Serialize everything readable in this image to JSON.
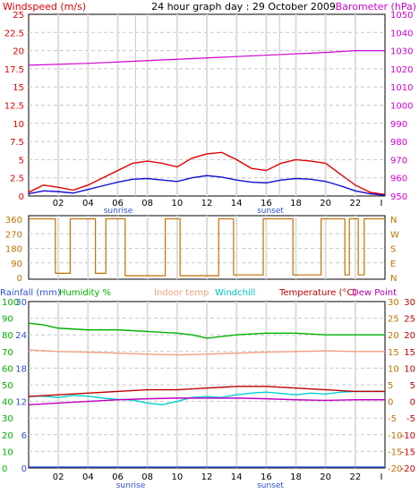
{
  "chart_data": [
    {
      "panel": "wind-barometer",
      "type": "line",
      "title": "24 hour graph day : 29 October 2009",
      "ylabel_left": "Windspeed (m/s)",
      "ylabel_right": "Barometer (hPa)",
      "left_ticks": [
        "25",
        "22.5",
        "20",
        "17.5",
        "15",
        "12.5",
        "10",
        "7.5",
        "5",
        "2.5",
        "0"
      ],
      "right_ticks": [
        "1050",
        "1040",
        "1030",
        "1020",
        "1010",
        "1000",
        "990",
        "980",
        "970",
        "960",
        "950"
      ],
      "ylim_left": [
        0,
        25
      ],
      "ylim_right": [
        950,
        1050
      ],
      "x_ticks": [
        "02",
        "04",
        "06",
        "08",
        "10",
        "12",
        "14",
        "16",
        "18",
        "20",
        "22"
      ],
      "xlim": [
        0,
        24
      ],
      "markers": {
        "sunrise": "sunrise",
        "sunset": "sunset",
        "sunrise_hour": 7.2,
        "sunset_hour": 16.9
      },
      "barometer_x": [
        0,
        4,
        8,
        12,
        16,
        20,
        22,
        24
      ],
      "barometer_y": [
        1022,
        1023,
        1024.5,
        1026,
        1027.5,
        1029,
        1030,
        1030
      ],
      "gust_x": [
        0,
        1,
        2,
        3,
        4,
        5,
        6,
        7,
        8,
        9,
        10,
        11,
        12,
        13,
        14,
        15,
        16,
        17,
        18,
        19,
        20,
        21,
        22,
        23,
        24
      ],
      "gust_y": [
        0.5,
        1.5,
        1.2,
        0.8,
        1.5,
        2.5,
        3.5,
        4.5,
        4.8,
        4.5,
        4.0,
        5.2,
        5.8,
        6.0,
        5.0,
        3.8,
        3.5,
        4.5,
        5.0,
        4.8,
        4.5,
        3.0,
        1.5,
        0.5,
        0.2
      ],
      "avg_x": [
        0,
        1,
        2,
        3,
        4,
        5,
        6,
        7,
        8,
        9,
        10,
        11,
        12,
        13,
        14,
        15,
        16,
        17,
        18,
        19,
        20,
        21,
        22,
        23,
        24
      ],
      "avg_y": [
        0.3,
        0.7,
        0.6,
        0.4,
        0.9,
        1.4,
        1.9,
        2.3,
        2.4,
        2.2,
        2.0,
        2.5,
        2.8,
        2.6,
        2.2,
        1.9,
        1.8,
        2.2,
        2.4,
        2.3,
        2.0,
        1.4,
        0.7,
        0.3,
        0.1
      ],
      "colors": {
        "gust": "#e00000",
        "avg": "#1010d0",
        "barometer": "#d000d0"
      }
    },
    {
      "panel": "wind-direction",
      "type": "line",
      "left_ticks": [
        "360",
        "270",
        "180",
        "90",
        "0"
      ],
      "right_ticks": [
        "N",
        "W",
        "S",
        "E",
        "N"
      ],
      "ylim": [
        0,
        360
      ],
      "xlim": [
        0,
        24
      ],
      "direction_x": [
        0,
        1.8,
        1.8,
        2.8,
        2.8,
        4.5,
        4.5,
        5.2,
        5.2,
        6.5,
        6.5,
        9.2,
        9.2,
        10.2,
        10.2,
        12.8,
        12.8,
        13.8,
        13.8,
        15.8,
        15.8,
        17.8,
        17.8,
        19.7,
        19.7,
        21.3,
        21.3,
        21.6,
        21.6,
        22.2,
        22.2,
        22.6,
        22.6,
        24
      ],
      "direction_y": [
        355,
        355,
        20,
        20,
        355,
        355,
        20,
        20,
        355,
        355,
        5,
        5,
        355,
        355,
        5,
        5,
        355,
        355,
        10,
        10,
        355,
        355,
        10,
        10,
        355,
        355,
        10,
        10,
        355,
        355,
        10,
        10,
        355,
        355
      ],
      "colors": {
        "direction": "#c07000"
      }
    },
    {
      "panel": "temperature-humidity",
      "type": "line",
      "legend": [
        "Rainfall (mm)",
        "Humidity %",
        "Indoor temp",
        "Windchill",
        "Temperature (°C)",
        "Dew Point"
      ],
      "left1_ticks": [
        "30",
        "24",
        "18",
        "12",
        "6",
        "0"
      ],
      "left2_ticks": [
        "100",
        "90",
        "80",
        "70",
        "60",
        "50",
        "40",
        "30",
        "20",
        "10",
        "0"
      ],
      "right1_ticks": [
        "30",
        "25",
        "20",
        "15",
        "10",
        "5",
        "0",
        "-5",
        "-10",
        "-15",
        "-20"
      ],
      "right2_ticks": [
        "30",
        "25",
        "20",
        "15",
        "10",
        "5",
        "0",
        "-5",
        "-10",
        "-15",
        "-20"
      ],
      "ylim_temp": [
        -20,
        30
      ],
      "xlim": [
        0,
        24
      ],
      "x_ticks": [
        "02",
        "04",
        "06",
        "08",
        "10",
        "12",
        "14",
        "16",
        "18",
        "20",
        "22"
      ],
      "markers": {
        "sunrise": "sunrise",
        "sunset": "sunset"
      },
      "humidity_x": [
        0,
        1,
        2,
        4,
        6,
        8,
        10,
        11,
        12,
        14,
        16,
        18,
        20,
        22,
        24
      ],
      "humidity_y": [
        87,
        86,
        84,
        83,
        83,
        82,
        81,
        80,
        78,
        80,
        81,
        81,
        80,
        80,
        80
      ],
      "indoor_x": [
        0,
        2,
        4,
        6,
        8,
        10,
        12,
        14,
        16,
        18,
        20,
        22,
        24
      ],
      "indoor_y": [
        15.5,
        15,
        14.8,
        14.5,
        14.2,
        14,
        14.2,
        14.5,
        14.8,
        15,
        15.2,
        15,
        15
      ],
      "temp_x": [
        0,
        2,
        4,
        6,
        8,
        10,
        12,
        14,
        16,
        18,
        20,
        22,
        24
      ],
      "temp_y": [
        1.5,
        2,
        2.5,
        3,
        3.5,
        3.5,
        4,
        4.5,
        4.5,
        4,
        3.5,
        3,
        3
      ],
      "windchill_x": [
        0,
        1,
        2,
        3,
        4,
        5,
        6,
        7,
        8,
        9,
        10,
        11,
        12,
        13,
        14,
        15,
        16,
        17,
        18,
        19,
        20,
        21,
        22,
        23,
        24
      ],
      "windchill_y": [
        1.5,
        1.6,
        1.2,
        1.8,
        1.6,
        1.0,
        0.6,
        0.4,
        -0.5,
        -1.0,
        0.0,
        1.2,
        1.5,
        1.2,
        2.0,
        2.5,
        2.8,
        2.4,
        2.0,
        2.5,
        2.2,
        2.8,
        3.0,
        3.0,
        3.0
      ],
      "dewpoint_x": [
        0,
        2,
        4,
        6,
        8,
        10,
        12,
        14,
        16,
        18,
        20,
        22,
        24
      ],
      "dewpoint_y": [
        -1,
        -0.5,
        0,
        0.5,
        0.8,
        1,
        1,
        1,
        0.8,
        0.5,
        0.3,
        0.5,
        0.5
      ],
      "rainfall_y": 0,
      "colors": {
        "humidity": "#00b000",
        "indoor": "#f0a080",
        "temp": "#c00000",
        "windchill": "#00d0d0",
        "dewpoint": "#c000c0",
        "rainfall": "#3050d0"
      }
    }
  ],
  "palette": {
    "red_text": "#e00000",
    "magenta_text": "#d000d0",
    "brown_text": "#c07000",
    "green_text": "#00b000",
    "blue_text": "#3050d0",
    "salmon_text": "#f0a080",
    "cyan_text": "#00c0c0",
    "darkred_text": "#c00000",
    "purple_text": "#b000b0",
    "grid": "#c8c8c8",
    "axis": "#000000"
  }
}
